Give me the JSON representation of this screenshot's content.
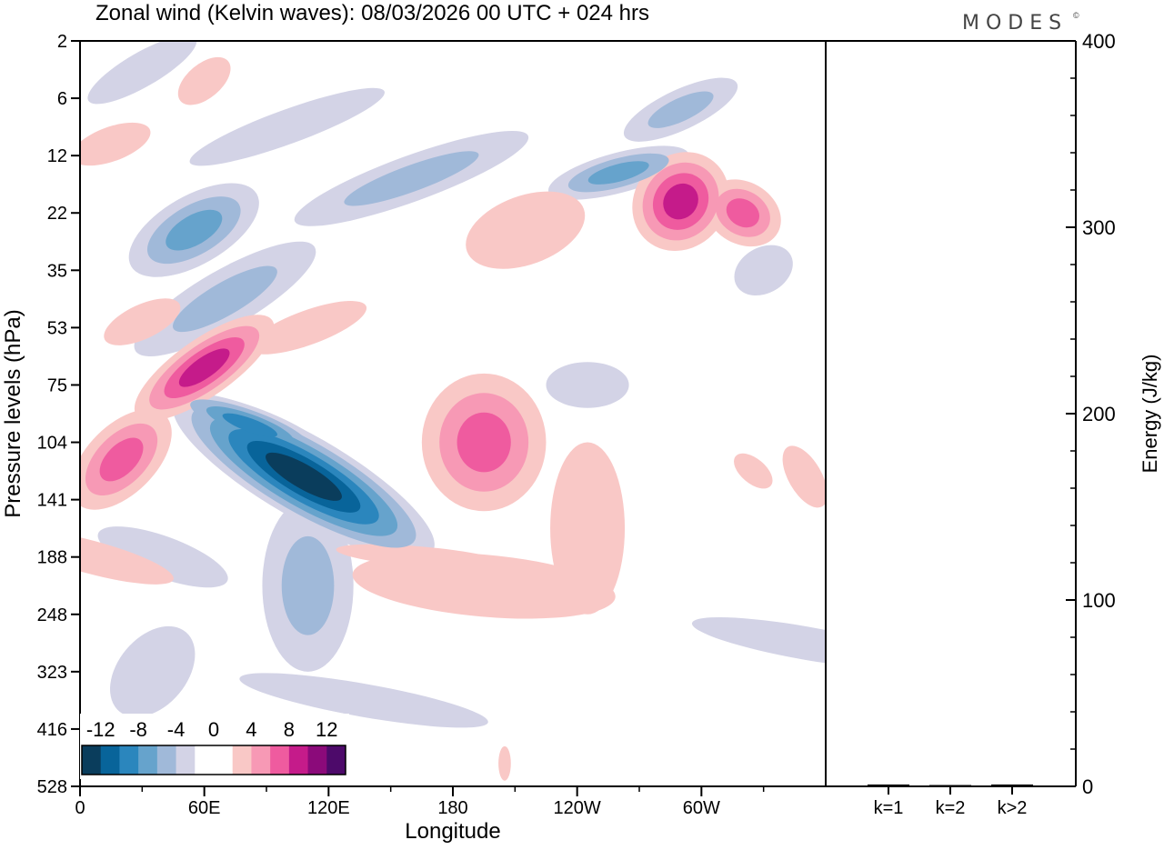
{
  "chart_data": [
    {
      "type": "heatmap",
      "title": "Zonal wind (Kelvin waves):  08/03/2026  00 UTC  + 024 hrs",
      "xlabel": "Longitude",
      "ylabel": "Pressure levels (hPa)",
      "x_ticks": [
        "0",
        "60E",
        "120E",
        "180",
        "120W",
        "60W"
      ],
      "x_tick_values": [
        0,
        60,
        120,
        180,
        240,
        300
      ],
      "xlim": [
        0,
        360
      ],
      "y_ticks": [
        "2",
        "6",
        "12",
        "22",
        "35",
        "53",
        "75",
        "104",
        "141",
        "188",
        "248",
        "323",
        "416",
        "528"
      ],
      "colorbar": {
        "labels": [
          "-12",
          "-8",
          "-4",
          "0",
          "4",
          "8",
          "12"
        ],
        "levels": [
          -14,
          -12,
          -10,
          -8,
          -6,
          -4,
          -2,
          2,
          4,
          6,
          8,
          10,
          12,
          14
        ],
        "neg_colors": [
          "#d3d3e6",
          "#a0b9d9",
          "#66a3cc",
          "#2b86bd",
          "#08649a",
          "#0a3d5c"
        ],
        "pos_colors": [
          "#f9c8c6",
          "#f799b5",
          "#ef5b9f",
          "#c51b8a",
          "#8b0a7a",
          "#4d0a6a"
        ],
        "zero_color": "#ffffff"
      },
      "features_note": "approximate anomaly blobs: [lon, level index, lon half-width, level half-width, tilt, peak m/s]",
      "features": [
        [
          108,
          7.6,
          20,
          2.6,
          -60,
          -14
        ],
        [
          82,
          6.7,
          9,
          1.4,
          -70,
          -8
        ],
        [
          110,
          9.5,
          22,
          1.5,
          0,
          -4
        ],
        [
          137,
          11.5,
          8,
          2.2,
          -80,
          -2
        ],
        [
          55,
          3.3,
          35,
          0.6,
          -30,
          -6
        ],
        [
          70,
          4.5,
          50,
          0.5,
          -30,
          -4
        ],
        [
          35,
          11,
          25,
          0.6,
          -50,
          -2
        ],
        [
          40,
          9,
          10,
          1.2,
          -70,
          -2
        ],
        [
          160,
          2.4,
          60,
          0.4,
          -20,
          -4
        ],
        [
          260,
          2.3,
          35,
          0.35,
          -15,
          -6
        ],
        [
          290,
          1.2,
          30,
          0.35,
          -25,
          -4
        ],
        [
          245,
          6,
          20,
          0.4,
          0,
          -2
        ],
        [
          350,
          10.5,
          8,
          2,
          -80,
          -2
        ],
        [
          30,
          0.5,
          30,
          0.3,
          -30,
          -2
        ],
        [
          100,
          1.5,
          50,
          0.3,
          -20,
          -2
        ],
        [
          330,
          4,
          15,
          0.4,
          -30,
          -2
        ],
        [
          60,
          5.7,
          40,
          0.5,
          -35,
          8
        ],
        [
          20,
          7.3,
          30,
          0.6,
          -45,
          6
        ],
        [
          5,
          9,
          8,
          1.5,
          -75,
          2
        ],
        [
          30,
          4.9,
          20,
          0.3,
          -25,
          2
        ],
        [
          195,
          7,
          30,
          1.2,
          0,
          6
        ],
        [
          195,
          9.5,
          15,
          2.3,
          -85,
          2
        ],
        [
          245,
          8.5,
          18,
          1.5,
          0,
          2
        ],
        [
          165,
          9,
          5,
          1.5,
          -85,
          2
        ],
        [
          215,
          3.3,
          30,
          0.6,
          -20,
          2
        ],
        [
          290,
          2.8,
          25,
          0.8,
          -50,
          8
        ],
        [
          320,
          3,
          15,
          0.7,
          -60,
          6
        ],
        [
          15,
          1.8,
          20,
          0.3,
          -20,
          2
        ],
        [
          60,
          0.7,
          15,
          0.3,
          -40,
          2
        ],
        [
          110,
          5,
          30,
          0.3,
          -20,
          2
        ],
        [
          350,
          7.6,
          8,
          0.6,
          -30,
          2
        ],
        [
          205,
          12.6,
          3,
          0.3,
          0,
          2
        ],
        [
          325,
          7.5,
          6,
          0.4,
          -50,
          2
        ]
      ]
    },
    {
      "type": "bar",
      "categories": [
        "k=1",
        "k=2",
        "k>2"
      ],
      "values": [
        1,
        0.5,
        1
      ],
      "ylabel": "Energy (J/kg)",
      "ylim": [
        0,
        400
      ],
      "y_ticks": [
        "0",
        "100",
        "200",
        "300",
        "400"
      ]
    }
  ],
  "logo": "MODES"
}
